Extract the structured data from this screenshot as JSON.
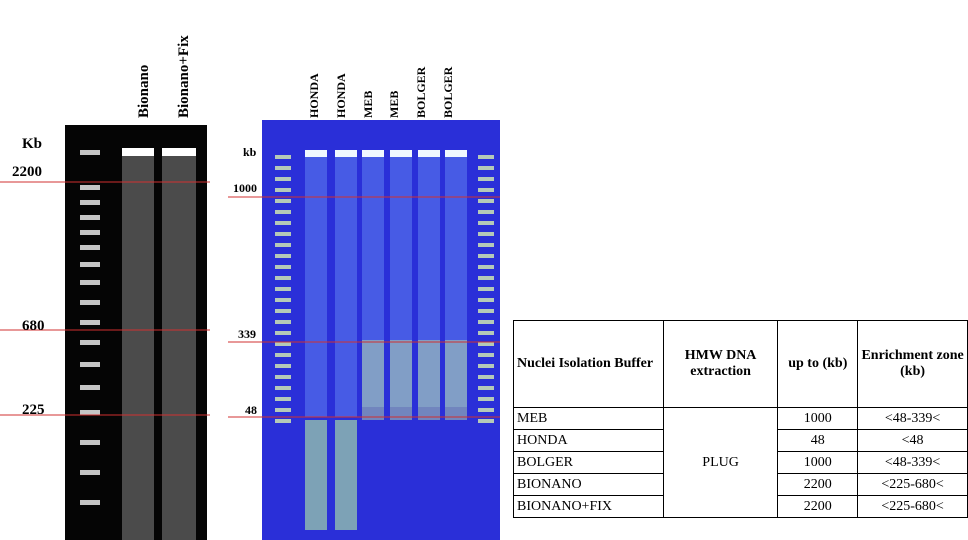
{
  "gel_left": {
    "unit": "Kb",
    "markers": [
      "2200",
      "680",
      "225"
    ],
    "lanes": [
      "Bionano",
      "Bionano+Fix"
    ]
  },
  "gel_right": {
    "unit": "kb",
    "markers": [
      "1000",
      "339",
      "48"
    ],
    "lanes": [
      "HONDA",
      "HONDA",
      "MEB",
      "MEB",
      "BOLGER",
      "BOLGER"
    ]
  },
  "table": {
    "header": [
      "Nuclei Isolation Buffer",
      "HMW DNA extraction",
      "up to (kb)",
      "Enrichment zone (kb)"
    ],
    "extraction": "PLUG",
    "rows": [
      {
        "buffer": "MEB",
        "up_to": "1000",
        "zone": "<48-339<"
      },
      {
        "buffer": "HONDA",
        "up_to": "48",
        "zone": "<48"
      },
      {
        "buffer": "BOLGER",
        "up_to": "1000",
        "zone": "<48-339<"
      },
      {
        "buffer": "BIONANO",
        "up_to": "2200",
        "zone": "<225-680<"
      },
      {
        "buffer": "BIONANO+FIX",
        "up_to": "2200",
        "zone": "<225-680<"
      }
    ]
  }
}
